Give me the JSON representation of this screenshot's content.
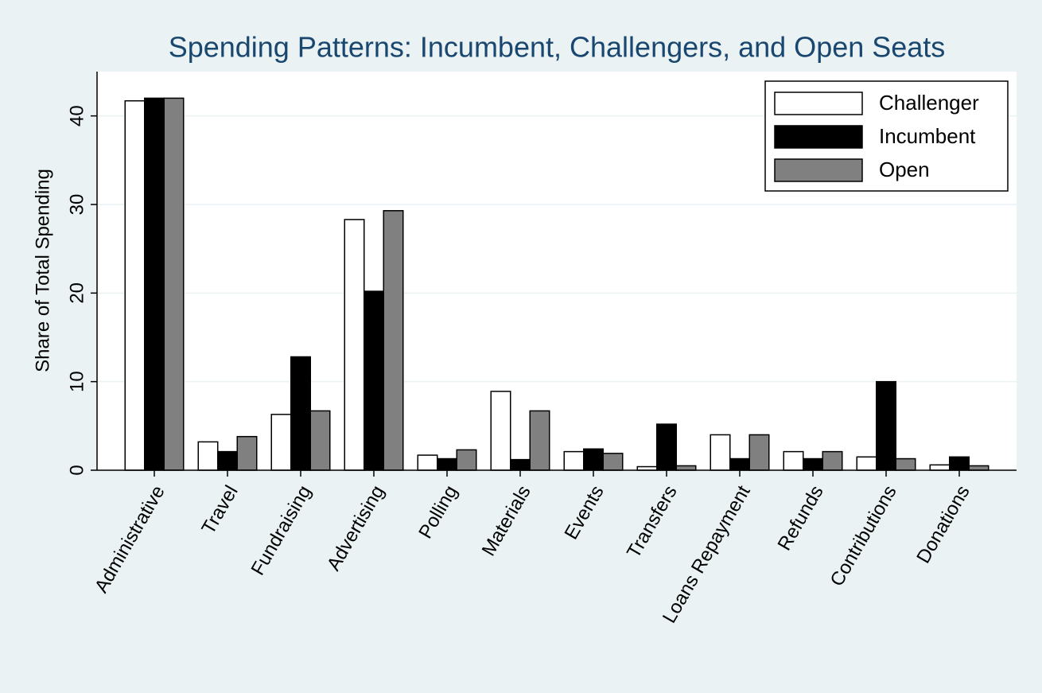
{
  "chart_data": {
    "type": "bar",
    "title": "Spending Patterns: Incumbent, Challengers, and Open Seats",
    "y_label": "Share of Total Spending",
    "categories": [
      "Administrative",
      "Travel",
      "Fundraising",
      "Advertising",
      "Polling",
      "Materials",
      "Events",
      "Transfers",
      "Loans Repayment",
      "Refunds",
      "Contributions",
      "Donations"
    ],
    "series": [
      {
        "name": "Challenger",
        "color": "#ffffff",
        "values": [
          41.7,
          3.2,
          6.3,
          28.3,
          1.7,
          8.9,
          2.1,
          0.4,
          4.0,
          2.1,
          1.5,
          0.6
        ]
      },
      {
        "name": "Incumbent",
        "color": "#000000",
        "values": [
          42.0,
          2.1,
          12.8,
          20.2,
          1.3,
          1.2,
          2.4,
          5.2,
          1.3,
          1.3,
          10.0,
          1.5
        ]
      },
      {
        "name": "Open",
        "color": "#808080",
        "values": [
          42.0,
          3.8,
          6.7,
          29.3,
          2.3,
          6.7,
          1.9,
          0.5,
          4.0,
          2.1,
          1.3,
          0.5
        ]
      }
    ],
    "ylim": [
      0,
      45
    ],
    "yticks": [
      0,
      10,
      20,
      30,
      40
    ],
    "grid": true,
    "legend": "top-right"
  }
}
